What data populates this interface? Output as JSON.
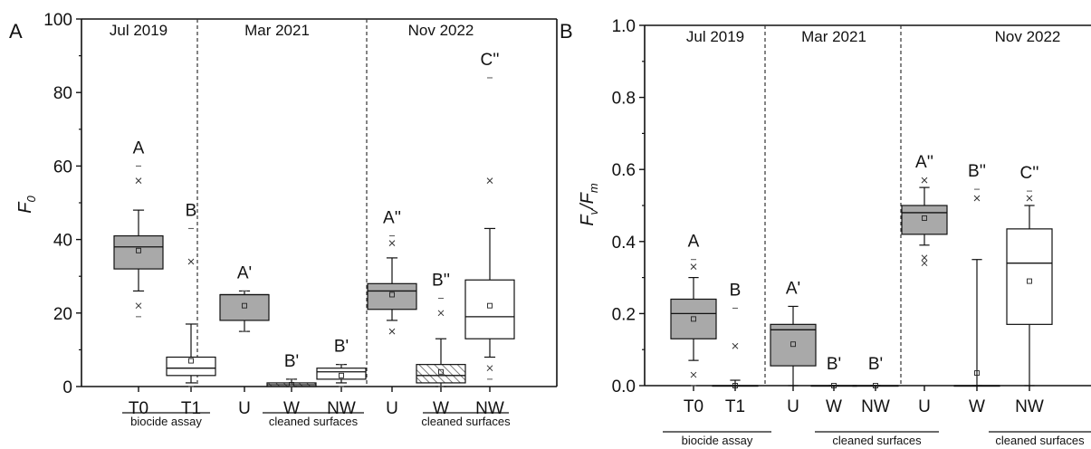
{
  "colors": {
    "gray_box": "#a9a9a9",
    "white_box": "#ffffff",
    "hatch": "#555555",
    "axis": "#111111"
  },
  "chart_data": [
    {
      "type": "box",
      "panel_label": "A",
      "ylabel": "F",
      "ylabel_sub": "0",
      "ylim": [
        0,
        100
      ],
      "yticks": [
        0,
        20,
        40,
        60,
        80,
        100
      ],
      "grid": false,
      "periods": [
        {
          "label": "Jul 2019",
          "group_label": "biocide assay"
        },
        {
          "label": "Mar 2021",
          "group_label": "cleaned surfaces"
        },
        {
          "label": "Nov 2022",
          "group_label": "cleaned surfaces"
        }
      ],
      "boxes": [
        {
          "category": "T0",
          "period": 0,
          "fill": "gray",
          "letter": "A",
          "whisker_low": 26,
          "q1": 32,
          "median": 38,
          "q3": 41,
          "whisker_high": 48,
          "mean": 37,
          "outliers": [
            22,
            56
          ],
          "extremes": [
            19,
            60
          ]
        },
        {
          "category": "T1",
          "period": 0,
          "fill": "white",
          "letter": "B",
          "whisker_low": 1,
          "q1": 3,
          "median": 5,
          "q3": 8,
          "whisker_high": 17,
          "mean": 7,
          "outliers": [
            34
          ],
          "extremes": [
            0,
            43
          ]
        },
        {
          "category": "U",
          "period": 1,
          "fill": "gray",
          "letter": "A'",
          "whisker_low": 15,
          "q1": 18,
          "median": 25,
          "q3": 25,
          "whisker_high": 26,
          "mean": 22,
          "outliers": [],
          "extremes": [
            15,
            26
          ]
        },
        {
          "category": "W",
          "period": 1,
          "fill": "hatch",
          "letter": "B'",
          "whisker_low": 0,
          "q1": 0,
          "median": 0.5,
          "q3": 1,
          "whisker_high": 2,
          "mean": 0.5,
          "outliers": [],
          "extremes": [
            0,
            2
          ]
        },
        {
          "category": "NW",
          "period": 1,
          "fill": "white",
          "letter": "B'",
          "whisker_low": 1,
          "q1": 2,
          "median": 4,
          "q3": 5,
          "whisker_high": 6,
          "mean": 3,
          "outliers": [],
          "extremes": [
            0,
            6
          ]
        },
        {
          "category": "U",
          "period": 2,
          "fill": "gray",
          "letter": "A''",
          "whisker_low": 18,
          "q1": 21,
          "median": 26,
          "q3": 28,
          "whisker_high": 35,
          "mean": 25,
          "outliers": [
            15,
            39
          ],
          "extremes": [
            41
          ]
        },
        {
          "category": "W",
          "period": 2,
          "fill": "hatch",
          "letter": "B''",
          "whisker_low": 0,
          "q1": 1,
          "median": 3,
          "q3": 6,
          "whisker_high": 13,
          "mean": 4,
          "outliers": [
            20
          ],
          "extremes": [
            0,
            24
          ]
        },
        {
          "category": "NW",
          "period": 2,
          "fill": "white",
          "letter": "C''",
          "whisker_low": 8,
          "q1": 13,
          "median": 19,
          "q3": 29,
          "whisker_high": 43,
          "mean": 22,
          "outliers": [
            5,
            56
          ],
          "extremes": [
            2,
            84
          ]
        }
      ]
    },
    {
      "type": "box",
      "panel_label": "B",
      "ylabel": "F",
      "ylabel_sub": "v",
      "ylabel_mid": "/F",
      "ylabel_sub2": "m",
      "ylim": [
        0,
        1.0
      ],
      "yticks": [
        0.0,
        0.2,
        0.4,
        0.6,
        0.8,
        1.0
      ],
      "yticks_text": [
        "0.0",
        "0.2",
        "0.4",
        "0.6",
        "0.8",
        "1.0"
      ],
      "grid": false,
      "periods": [
        {
          "label": "Jul 2019",
          "group_label": "biocide assay"
        },
        {
          "label": "Mar 2021",
          "group_label": "cleaned surfaces"
        },
        {
          "label": "Nov 2022",
          "group_label": "cleaned surfaces"
        }
      ],
      "boxes": [
        {
          "category": "T0",
          "period": 0,
          "fill": "gray",
          "letter": "A",
          "whisker_low": 0.07,
          "q1": 0.13,
          "median": 0.2,
          "q3": 0.24,
          "whisker_high": 0.3,
          "mean": 0.185,
          "outliers": [
            0.03,
            0.33
          ],
          "extremes": [
            0.0,
            0.35
          ]
        },
        {
          "category": "T1",
          "period": 0,
          "fill": "white",
          "letter": "B",
          "whisker_low": 0.0,
          "q1": 0.0,
          "median": 0.0,
          "q3": 0.0,
          "whisker_high": 0.015,
          "mean": 0.0,
          "outliers": [
            0.11
          ],
          "extremes": [
            0.215
          ]
        },
        {
          "category": "U",
          "period": 1,
          "fill": "gray",
          "letter": "A'",
          "whisker_low": 0.0,
          "q1": 0.055,
          "median": 0.155,
          "q3": 0.17,
          "whisker_high": 0.22,
          "mean": 0.115,
          "outliers": [],
          "extremes": []
        },
        {
          "category": "W",
          "period": 1,
          "fill": "white",
          "letter": "B'",
          "whisker_low": 0.0,
          "q1": 0.0,
          "median": 0.0,
          "q3": 0.0,
          "whisker_high": 0.0,
          "mean": 0.0,
          "outliers": [],
          "extremes": []
        },
        {
          "category": "NW",
          "period": 1,
          "fill": "white",
          "letter": "B'",
          "whisker_low": 0.0,
          "q1": 0.0,
          "median": 0.0,
          "q3": 0.0,
          "whisker_high": 0.0,
          "mean": 0.0,
          "outliers": [],
          "extremes": []
        },
        {
          "category": "U",
          "period": 2,
          "fill": "gray",
          "letter": "A''",
          "whisker_low": 0.39,
          "q1": 0.42,
          "median": 0.48,
          "q3": 0.5,
          "whisker_high": 0.55,
          "mean": 0.465,
          "outliers": [
            0.34,
            0.355,
            0.57
          ],
          "extremes": []
        },
        {
          "category": "W",
          "period": 2,
          "fill": "white",
          "letter": "B''",
          "whisker_low": 0.0,
          "q1": 0.0,
          "median": 0.0,
          "q3": 0.0,
          "whisker_high": 0.35,
          "mean": 0.035,
          "outliers": [
            0.52
          ],
          "extremes": [
            0.545
          ]
        },
        {
          "category": "NW",
          "period": 2,
          "fill": "white",
          "letter": "C''",
          "whisker_low": 0.0,
          "q1": 0.17,
          "median": 0.34,
          "q3": 0.435,
          "whisker_high": 0.5,
          "mean": 0.29,
          "outliers": [
            0.52
          ],
          "extremes": [
            0.54
          ]
        }
      ]
    }
  ]
}
